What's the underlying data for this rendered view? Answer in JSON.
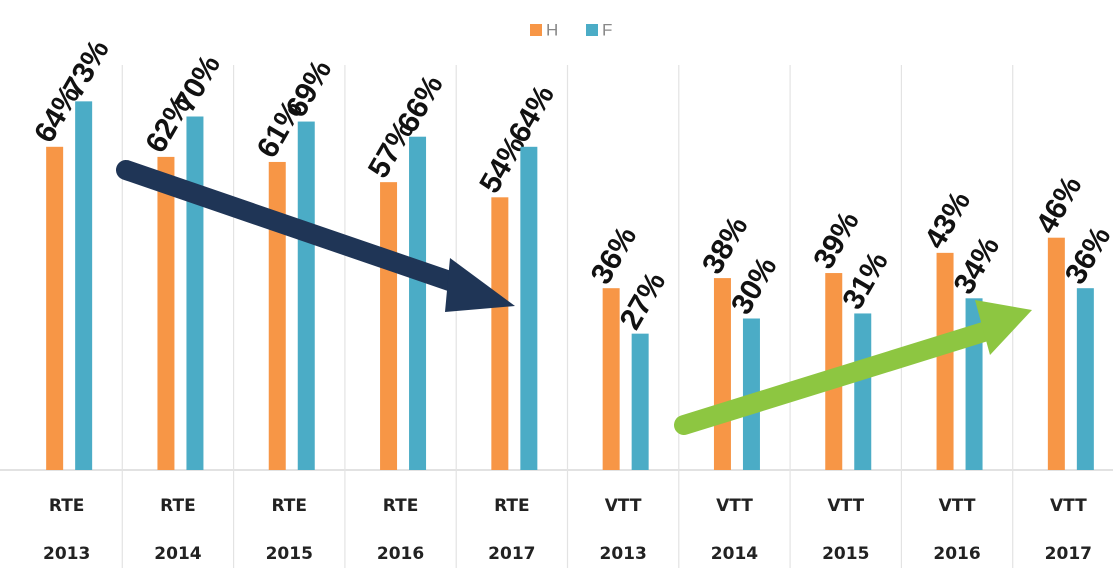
{
  "chart_data": {
    "type": "bar",
    "categories": [
      [
        "RTE",
        "2013"
      ],
      [
        "RTE",
        "2014"
      ],
      [
        "RTE",
        "2015"
      ],
      [
        "RTE",
        "2016"
      ],
      [
        "RTE",
        "2017"
      ],
      [
        "VTT",
        "2013"
      ],
      [
        "VTT",
        "2014"
      ],
      [
        "VTT",
        "2015"
      ],
      [
        "VTT",
        "2016"
      ],
      [
        "VTT",
        "2017"
      ]
    ],
    "series": [
      {
        "name": "H",
        "color": "#f79646",
        "values": [
          64,
          62,
          61,
          57,
          54,
          36,
          38,
          39,
          43,
          46
        ],
        "value_labels": [
          "64%",
          "62%",
          "61%",
          "57%",
          "54%",
          "36%",
          "38%",
          "39%",
          "43%",
          "46%"
        ]
      },
      {
        "name": "F",
        "color": "#4bacc6",
        "values": [
          73,
          70,
          69,
          66,
          64,
          27,
          30,
          31,
          34,
          36
        ],
        "value_labels": [
          "73%",
          "70%",
          "69%",
          "66%",
          "64%",
          "27%",
          "30%",
          "31%",
          "34%",
          "36%"
        ]
      }
    ],
    "ylim": [
      0,
      100
    ],
    "legend": "top"
  }
}
